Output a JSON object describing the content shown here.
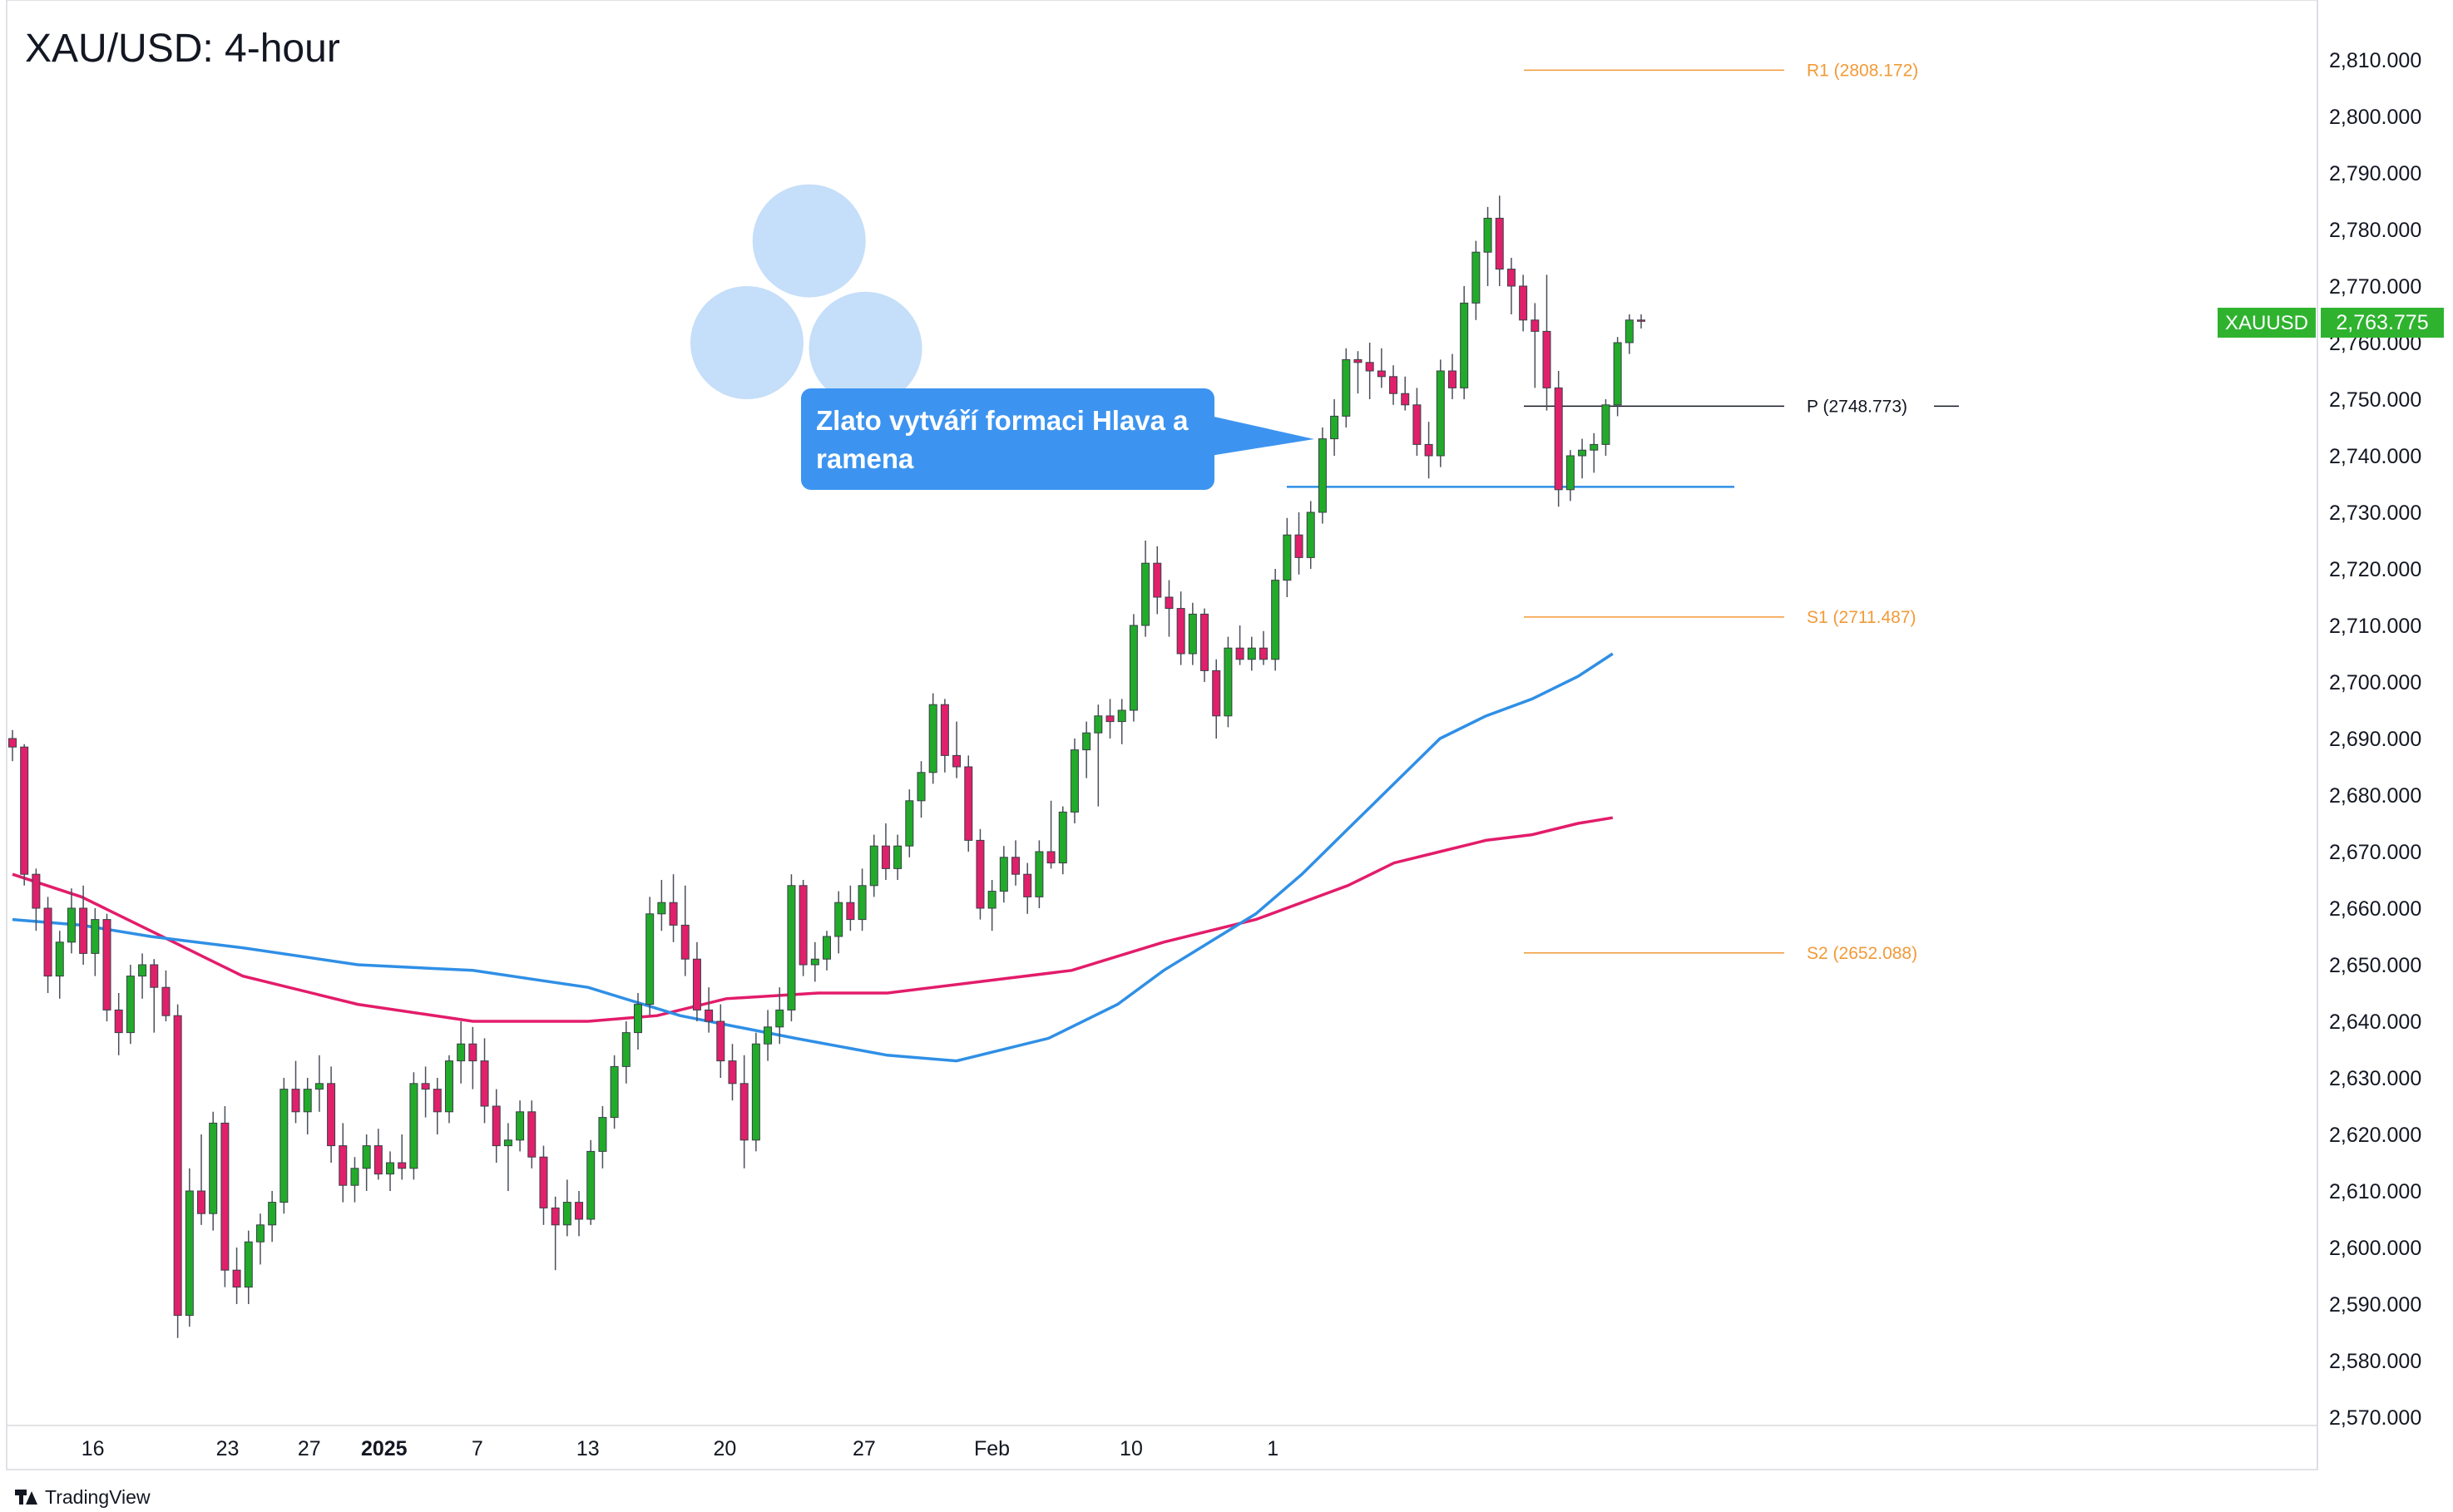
{
  "title": "XAU/USD: 4-hour",
  "watermark": "TradingView",
  "colors": {
    "bull": "#22ab2a",
    "bear": "#e0206a",
    "ma_fast": "#2f8fe6",
    "ma_slow": "#e31c6a",
    "pivot_orange": "#f29a38",
    "pivot_black": "#131722",
    "neckline": "#2f8fe6",
    "circle": "#9fc8f5",
    "price_badge": "#2fb32f"
  },
  "price_axis": {
    "labels": [
      "2,810.000",
      "2,800.000",
      "2,790.000",
      "2,780.000",
      "2,770.000",
      "2,760.000",
      "2,750.000",
      "2,740.000",
      "2,730.000",
      "2,720.000",
      "2,710.000",
      "2,700.000",
      "2,690.000",
      "2,680.000",
      "2,670.000",
      "2,660.000",
      "2,650.000",
      "2,640.000",
      "2,630.000",
      "2,620.000",
      "2,610.000",
      "2,600.000",
      "2,590.000",
      "2,580.000",
      "2,570.000"
    ]
  },
  "time_axis": {
    "labels": [
      "16",
      "23",
      "27",
      "2025",
      "7",
      "13",
      "20",
      "27",
      "Feb",
      "10",
      "1"
    ]
  },
  "current_price": {
    "symbol": "XAUUSD",
    "value": "2,763.775"
  },
  "callout": {
    "text": "Zlato vytváří formaci Hlava a ramena"
  },
  "pivots": [
    {
      "label": "R1 (2808.172)",
      "value": 2808.172,
      "style": "orange"
    },
    {
      "label": "P (2748.773)",
      "value": 2748.773,
      "style": "black"
    },
    {
      "label": "S1 (2711.487)",
      "value": 2711.487,
      "style": "orange"
    },
    {
      "label": "S2 (2652.088)",
      "value": 2652.088,
      "style": "orange"
    }
  ],
  "chart_data": {
    "type": "candlestick",
    "title": "XAU/USD: 4-hour",
    "ylim": [
      2570,
      2810
    ],
    "neckline": 2734.5,
    "head_and_shoulders": [
      "left-shoulder",
      "head",
      "right-shoulder"
    ],
    "candles": [
      {
        "o": 2690.0,
        "h": 2691.5,
        "l": 2686.0,
        "c": 2688.5
      },
      {
        "o": 2688.5,
        "h": 2689.0,
        "l": 2664.0,
        "c": 2666.0
      },
      {
        "o": 2666.0,
        "h": 2667.0,
        "l": 2656.0,
        "c": 2660.0
      },
      {
        "o": 2660.0,
        "h": 2662.0,
        "l": 2645.0,
        "c": 2648.0
      },
      {
        "o": 2648.0,
        "h": 2656.0,
        "l": 2644.0,
        "c": 2654.0
      },
      {
        "o": 2654.0,
        "h": 2663.5,
        "l": 2652.0,
        "c": 2660.0
      },
      {
        "o": 2660.0,
        "h": 2664.0,
        "l": 2650.0,
        "c": 2652.0
      },
      {
        "o": 2652.0,
        "h": 2660.0,
        "l": 2648.0,
        "c": 2658.0
      },
      {
        "o": 2658.0,
        "h": 2659.0,
        "l": 2640.0,
        "c": 2642.0
      },
      {
        "o": 2642.0,
        "h": 2645.0,
        "l": 2634.0,
        "c": 2638.0
      },
      {
        "o": 2638.0,
        "h": 2650.0,
        "l": 2636.0,
        "c": 2648.0
      },
      {
        "o": 2648.0,
        "h": 2652.0,
        "l": 2644.0,
        "c": 2650.0
      },
      {
        "o": 2650.0,
        "h": 2651.0,
        "l": 2638.0,
        "c": 2646.0
      },
      {
        "o": 2646.0,
        "h": 2649.0,
        "l": 2640.0,
        "c": 2641.0
      },
      {
        "o": 2641.0,
        "h": 2643.0,
        "l": 2584.0,
        "c": 2588.0
      },
      {
        "o": 2588.0,
        "h": 2614.0,
        "l": 2586.0,
        "c": 2610.0
      },
      {
        "o": 2610.0,
        "h": 2620.0,
        "l": 2604.0,
        "c": 2606.0
      },
      {
        "o": 2606.0,
        "h": 2624.0,
        "l": 2603.0,
        "c": 2622.0
      },
      {
        "o": 2622.0,
        "h": 2625.0,
        "l": 2593.0,
        "c": 2596.0
      },
      {
        "o": 2596.0,
        "h": 2600.0,
        "l": 2590.0,
        "c": 2593.0
      },
      {
        "o": 2593.0,
        "h": 2603.0,
        "l": 2590.0,
        "c": 2601.0
      },
      {
        "o": 2601.0,
        "h": 2606.0,
        "l": 2597.0,
        "c": 2604.0
      },
      {
        "o": 2604.0,
        "h": 2610.0,
        "l": 2601.0,
        "c": 2608.0
      },
      {
        "o": 2608.0,
        "h": 2630.0,
        "l": 2606.0,
        "c": 2628.0
      },
      {
        "o": 2628.0,
        "h": 2633.0,
        "l": 2622.0,
        "c": 2624.0
      },
      {
        "o": 2624.0,
        "h": 2630.0,
        "l": 2620.0,
        "c": 2628.0
      },
      {
        "o": 2628.0,
        "h": 2634.0,
        "l": 2624.0,
        "c": 2629.0
      },
      {
        "o": 2629.0,
        "h": 2632.0,
        "l": 2615.0,
        "c": 2618.0
      },
      {
        "o": 2618.0,
        "h": 2622.0,
        "l": 2608.0,
        "c": 2611.0
      },
      {
        "o": 2611.0,
        "h": 2616.0,
        "l": 2608.0,
        "c": 2614.0
      },
      {
        "o": 2614.0,
        "h": 2620.0,
        "l": 2610.0,
        "c": 2618.0
      },
      {
        "o": 2618.0,
        "h": 2621.0,
        "l": 2612.0,
        "c": 2613.0
      },
      {
        "o": 2613.0,
        "h": 2617.0,
        "l": 2610.0,
        "c": 2615.0
      },
      {
        "o": 2615.0,
        "h": 2620.0,
        "l": 2612.0,
        "c": 2614.0
      },
      {
        "o": 2614.0,
        "h": 2631.0,
        "l": 2612.0,
        "c": 2629.0
      },
      {
        "o": 2629.0,
        "h": 2632.0,
        "l": 2623.0,
        "c": 2628.0
      },
      {
        "o": 2628.0,
        "h": 2630.0,
        "l": 2620.0,
        "c": 2624.0
      },
      {
        "o": 2624.0,
        "h": 2634.0,
        "l": 2622.0,
        "c": 2633.0
      },
      {
        "o": 2633.0,
        "h": 2640.0,
        "l": 2629.0,
        "c": 2636.0
      },
      {
        "o": 2636.0,
        "h": 2639.0,
        "l": 2628.0,
        "c": 2633.0
      },
      {
        "o": 2633.0,
        "h": 2637.0,
        "l": 2622.0,
        "c": 2625.0
      },
      {
        "o": 2625.0,
        "h": 2628.0,
        "l": 2615.0,
        "c": 2618.0
      },
      {
        "o": 2618.0,
        "h": 2622.0,
        "l": 2610.0,
        "c": 2619.0
      },
      {
        "o": 2619.0,
        "h": 2626.0,
        "l": 2617.0,
        "c": 2624.0
      },
      {
        "o": 2624.0,
        "h": 2626.0,
        "l": 2614.0,
        "c": 2616.0
      },
      {
        "o": 2616.0,
        "h": 2618.0,
        "l": 2604.0,
        "c": 2607.0
      },
      {
        "o": 2607.0,
        "h": 2609.0,
        "l": 2596.0,
        "c": 2604.0
      },
      {
        "o": 2604.0,
        "h": 2612.0,
        "l": 2602.0,
        "c": 2608.0
      },
      {
        "o": 2608.0,
        "h": 2610.0,
        "l": 2602.0,
        "c": 2605.0
      },
      {
        "o": 2605.0,
        "h": 2619.0,
        "l": 2604.0,
        "c": 2617.0
      },
      {
        "o": 2617.0,
        "h": 2625.0,
        "l": 2614.0,
        "c": 2623.0
      },
      {
        "o": 2623.0,
        "h": 2634.0,
        "l": 2621.0,
        "c": 2632.0
      },
      {
        "o": 2632.0,
        "h": 2640.0,
        "l": 2629.0,
        "c": 2638.0
      },
      {
        "o": 2638.0,
        "h": 2645.0,
        "l": 2635.0,
        "c": 2643.0
      },
      {
        "o": 2643.0,
        "h": 2662.0,
        "l": 2641.0,
        "c": 2659.0
      },
      {
        "o": 2659.0,
        "h": 2665.0,
        "l": 2656.0,
        "c": 2661.0
      },
      {
        "o": 2661.0,
        "h": 2666.0,
        "l": 2654.0,
        "c": 2657.0
      },
      {
        "o": 2657.0,
        "h": 2664.0,
        "l": 2648.0,
        "c": 2651.0
      },
      {
        "o": 2651.0,
        "h": 2654.0,
        "l": 2640.0,
        "c": 2642.0
      },
      {
        "o": 2642.0,
        "h": 2646.0,
        "l": 2638.0,
        "c": 2640.0
      },
      {
        "o": 2640.0,
        "h": 2643.0,
        "l": 2630.0,
        "c": 2633.0
      },
      {
        "o": 2633.0,
        "h": 2636.0,
        "l": 2626.0,
        "c": 2629.0
      },
      {
        "o": 2629.0,
        "h": 2634.0,
        "l": 2614.0,
        "c": 2619.0
      },
      {
        "o": 2619.0,
        "h": 2638.0,
        "l": 2617.0,
        "c": 2636.0
      },
      {
        "o": 2636.0,
        "h": 2642.0,
        "l": 2633.0,
        "c": 2639.0
      },
      {
        "o": 2639.0,
        "h": 2646.0,
        "l": 2636.0,
        "c": 2642.0
      },
      {
        "o": 2642.0,
        "h": 2666.0,
        "l": 2640.0,
        "c": 2664.0
      },
      {
        "o": 2664.0,
        "h": 2665.0,
        "l": 2648.0,
        "c": 2650.0
      },
      {
        "o": 2650.0,
        "h": 2654.0,
        "l": 2647.0,
        "c": 2651.0
      },
      {
        "o": 2651.0,
        "h": 2656.0,
        "l": 2649.0,
        "c": 2655.0
      },
      {
        "o": 2655.0,
        "h": 2663.0,
        "l": 2652.0,
        "c": 2661.0
      },
      {
        "o": 2661.0,
        "h": 2664.0,
        "l": 2656.0,
        "c": 2658.0
      },
      {
        "o": 2658.0,
        "h": 2667.0,
        "l": 2656.0,
        "c": 2664.0
      },
      {
        "o": 2664.0,
        "h": 2673.0,
        "l": 2662.0,
        "c": 2671.0
      },
      {
        "o": 2671.0,
        "h": 2675.0,
        "l": 2665.0,
        "c": 2667.0
      },
      {
        "o": 2667.0,
        "h": 2673.0,
        "l": 2665.0,
        "c": 2671.0
      },
      {
        "o": 2671.0,
        "h": 2681.0,
        "l": 2669.0,
        "c": 2679.0
      },
      {
        "o": 2679.0,
        "h": 2686.0,
        "l": 2676.0,
        "c": 2684.0
      },
      {
        "o": 2684.0,
        "h": 2698.0,
        "l": 2682.0,
        "c": 2696.0
      },
      {
        "o": 2696.0,
        "h": 2697.0,
        "l": 2684.0,
        "c": 2687.0
      },
      {
        "o": 2687.0,
        "h": 2693.0,
        "l": 2683.0,
        "c": 2685.0
      },
      {
        "o": 2685.0,
        "h": 2687.0,
        "l": 2670.0,
        "c": 2672.0
      },
      {
        "o": 2672.0,
        "h": 2674.0,
        "l": 2658.0,
        "c": 2660.0
      },
      {
        "o": 2660.0,
        "h": 2665.0,
        "l": 2656.0,
        "c": 2663.0
      },
      {
        "o": 2663.0,
        "h": 2671.0,
        "l": 2661.0,
        "c": 2669.0
      },
      {
        "o": 2669.0,
        "h": 2672.0,
        "l": 2664.0,
        "c": 2666.0
      },
      {
        "o": 2666.0,
        "h": 2668.0,
        "l": 2659.0,
        "c": 2662.0
      },
      {
        "o": 2662.0,
        "h": 2672.0,
        "l": 2660.0,
        "c": 2670.0
      },
      {
        "o": 2670.0,
        "h": 2679.0,
        "l": 2667.0,
        "c": 2668.0
      },
      {
        "o": 2668.0,
        "h": 2678.0,
        "l": 2666.0,
        "c": 2677.0
      },
      {
        "o": 2677.0,
        "h": 2690.0,
        "l": 2675.0,
        "c": 2688.0
      },
      {
        "o": 2688.0,
        "h": 2693.0,
        "l": 2683.0,
        "c": 2691.0
      },
      {
        "o": 2691.0,
        "h": 2696.0,
        "l": 2678.0,
        "c": 2694.0
      },
      {
        "o": 2694.0,
        "h": 2697.0,
        "l": 2690.0,
        "c": 2693.0
      },
      {
        "o": 2693.0,
        "h": 2697.0,
        "l": 2689.0,
        "c": 2695.0
      },
      {
        "o": 2695.0,
        "h": 2712.0,
        "l": 2693.0,
        "c": 2710.0
      },
      {
        "o": 2710.0,
        "h": 2725.0,
        "l": 2708.0,
        "c": 2721.0
      },
      {
        "o": 2721.0,
        "h": 2724.0,
        "l": 2712.0,
        "c": 2715.0
      },
      {
        "o": 2715.0,
        "h": 2718.0,
        "l": 2708.0,
        "c": 2713.0
      },
      {
        "o": 2713.0,
        "h": 2716.0,
        "l": 2703.0,
        "c": 2705.0
      },
      {
        "o": 2705.0,
        "h": 2714.0,
        "l": 2703.0,
        "c": 2712.0
      },
      {
        "o": 2712.0,
        "h": 2713.0,
        "l": 2700.0,
        "c": 2702.0
      },
      {
        "o": 2702.0,
        "h": 2704.0,
        "l": 2690.0,
        "c": 2694.0
      },
      {
        "o": 2694.0,
        "h": 2708.0,
        "l": 2692.0,
        "c": 2706.0
      },
      {
        "o": 2706.0,
        "h": 2710.0,
        "l": 2703.0,
        "c": 2704.0
      },
      {
        "o": 2704.0,
        "h": 2708.0,
        "l": 2702.0,
        "c": 2706.0
      },
      {
        "o": 2706.0,
        "h": 2709.0,
        "l": 2703.0,
        "c": 2704.0
      },
      {
        "o": 2704.0,
        "h": 2720.0,
        "l": 2702.0,
        "c": 2718.0
      },
      {
        "o": 2718.0,
        "h": 2729.0,
        "l": 2715.0,
        "c": 2726.0
      },
      {
        "o": 2726.0,
        "h": 2730.0,
        "l": 2719.0,
        "c": 2722.0
      },
      {
        "o": 2722.0,
        "h": 2732.0,
        "l": 2720.0,
        "c": 2730.0
      },
      {
        "o": 2730.0,
        "h": 2745.0,
        "l": 2728.0,
        "c": 2743.0
      },
      {
        "o": 2743.0,
        "h": 2750.0,
        "l": 2740.0,
        "c": 2747.0
      },
      {
        "o": 2747.0,
        "h": 2759.0,
        "l": 2745.0,
        "c": 2757.0
      },
      {
        "o": 2757.0,
        "h": 2758.5,
        "l": 2751.0,
        "c": 2756.5
      },
      {
        "o": 2756.5,
        "h": 2760.0,
        "l": 2750.0,
        "c": 2755.0
      },
      {
        "o": 2755.0,
        "h": 2759.0,
        "l": 2752.0,
        "c": 2754.0
      },
      {
        "o": 2754.0,
        "h": 2756.0,
        "l": 2749.0,
        "c": 2751.0
      },
      {
        "o": 2751.0,
        "h": 2754.0,
        "l": 2748.0,
        "c": 2749.0
      },
      {
        "o": 2749.0,
        "h": 2752.0,
        "l": 2740.0,
        "c": 2742.0
      },
      {
        "o": 2742.0,
        "h": 2746.0,
        "l": 2736.0,
        "c": 2740.0
      },
      {
        "o": 2740.0,
        "h": 2757.0,
        "l": 2738.0,
        "c": 2755.0
      },
      {
        "o": 2755.0,
        "h": 2758.0,
        "l": 2750.0,
        "c": 2752.0
      },
      {
        "o": 2752.0,
        "h": 2770.0,
        "l": 2750.0,
        "c": 2767.0
      },
      {
        "o": 2767.0,
        "h": 2778.0,
        "l": 2764.0,
        "c": 2776.0
      },
      {
        "o": 2776.0,
        "h": 2784.0,
        "l": 2770.0,
        "c": 2782.0
      },
      {
        "o": 2782.0,
        "h": 2786.0,
        "l": 2770.0,
        "c": 2773.0
      },
      {
        "o": 2773.0,
        "h": 2775.0,
        "l": 2765.0,
        "c": 2770.0
      },
      {
        "o": 2770.0,
        "h": 2772.0,
        "l": 2762.0,
        "c": 2764.0
      },
      {
        "o": 2764.0,
        "h": 2767.0,
        "l": 2752.0,
        "c": 2762.0
      },
      {
        "o": 2762.0,
        "h": 2772.0,
        "l": 2748.0,
        "c": 2752.0
      },
      {
        "o": 2752.0,
        "h": 2755.0,
        "l": 2731.0,
        "c": 2734.0
      },
      {
        "o": 2734.0,
        "h": 2741.0,
        "l": 2732.0,
        "c": 2740.0
      },
      {
        "o": 2740.0,
        "h": 2743.0,
        "l": 2736.0,
        "c": 2741.0
      },
      {
        "o": 2741.0,
        "h": 2744.0,
        "l": 2737.0,
        "c": 2742.0
      },
      {
        "o": 2742.0,
        "h": 2750.0,
        "l": 2740.0,
        "c": 2749.0
      },
      {
        "o": 2749.0,
        "h": 2761.0,
        "l": 2747.0,
        "c": 2760.0
      },
      {
        "o": 2760.0,
        "h": 2765.0,
        "l": 2758.0,
        "c": 2764.0
      },
      {
        "o": 2764.0,
        "h": 2765.0,
        "l": 2762.5,
        "c": 2763.8
      }
    ],
    "ma_fast_points": [
      [
        0,
        2658
      ],
      [
        6,
        2657
      ],
      [
        12,
        2655
      ],
      [
        20,
        2653
      ],
      [
        30,
        2650
      ],
      [
        40,
        2649
      ],
      [
        50,
        2646
      ],
      [
        58,
        2641
      ],
      [
        68,
        2637
      ],
      [
        76,
        2634
      ],
      [
        82,
        2633
      ],
      [
        90,
        2637
      ],
      [
        96,
        2643
      ],
      [
        100,
        2649
      ],
      [
        104,
        2654
      ],
      [
        108,
        2659
      ],
      [
        112,
        2666
      ],
      [
        116,
        2674
      ],
      [
        120,
        2682
      ],
      [
        124,
        2690
      ],
      [
        128,
        2694
      ],
      [
        132,
        2697
      ],
      [
        136,
        2701
      ],
      [
        139,
        2705
      ]
    ],
    "ma_slow_points": [
      [
        0,
        2666
      ],
      [
        6,
        2662
      ],
      [
        12,
        2656
      ],
      [
        20,
        2648
      ],
      [
        30,
        2643
      ],
      [
        40,
        2640
      ],
      [
        50,
        2640
      ],
      [
        56,
        2641
      ],
      [
        62,
        2644
      ],
      [
        70,
        2645
      ],
      [
        76,
        2645
      ],
      [
        84,
        2647
      ],
      [
        92,
        2649
      ],
      [
        100,
        2654
      ],
      [
        108,
        2658
      ],
      [
        116,
        2664
      ],
      [
        120,
        2668
      ],
      [
        124,
        2670
      ],
      [
        128,
        2672
      ],
      [
        132,
        2673
      ],
      [
        136,
        2675
      ],
      [
        139,
        2676
      ]
    ]
  }
}
